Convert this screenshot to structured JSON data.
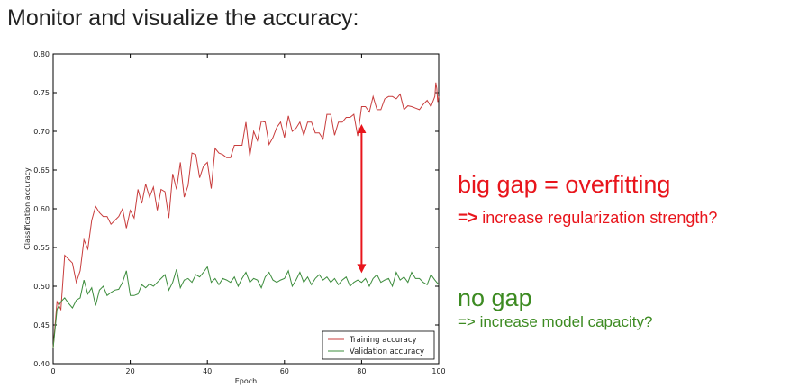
{
  "slide": {
    "title": "Monitor and visualize the accuracy:"
  },
  "annotations": {
    "gap_title": "big gap = overfitting",
    "gap_arrow": "=>",
    "gap_suggestion": "increase regularization strength?",
    "nogap_title": "no gap",
    "nogap_suggestion": "=> increase model capacity?",
    "gap_color": "#e8151c",
    "nogap_color": "#3d8b22",
    "gap_arrow_at_epoch": 80
  },
  "chart_data": {
    "type": "line",
    "title": "",
    "xlabel": "Epoch",
    "ylabel": "Classification accuracy",
    "xlim": [
      0,
      100
    ],
    "ylim": [
      0.4,
      0.8
    ],
    "xticks": [
      "0",
      "20",
      "40",
      "60",
      "80",
      "100"
    ],
    "yticks": [
      "0.40",
      "0.45",
      "0.50",
      "0.55",
      "0.60",
      "0.65",
      "0.70",
      "0.75",
      "0.80"
    ],
    "grid": false,
    "legend_position": "bottom-right",
    "x": [
      0,
      1,
      2,
      3,
      4,
      5,
      6,
      7,
      8,
      9,
      10,
      11,
      12,
      13,
      14,
      15,
      16,
      17,
      18,
      19,
      20,
      21,
      22,
      23,
      24,
      25,
      26,
      27,
      28,
      29,
      30,
      31,
      32,
      33,
      34,
      35,
      36,
      37,
      38,
      39,
      40,
      41,
      42,
      43,
      44,
      45,
      46,
      47,
      48,
      49,
      50,
      51,
      52,
      53,
      54,
      55,
      56,
      57,
      58,
      59,
      60,
      61,
      62,
      63,
      64,
      65,
      66,
      67,
      68,
      69,
      70,
      71,
      72,
      73,
      74,
      75,
      76,
      77,
      78,
      79,
      80,
      81,
      82,
      83,
      84,
      85,
      86,
      87,
      88,
      89,
      90,
      91,
      92,
      93,
      94,
      95,
      96,
      97,
      98,
      99,
      100
    ],
    "series": [
      {
        "name": "Training accuracy",
        "color": "#c83c3c",
        "values": [
          0.42,
          0.48,
          0.47,
          0.54,
          0.535,
          0.53,
          0.505,
          0.52,
          0.56,
          0.548,
          0.585,
          0.603,
          0.595,
          0.59,
          0.59,
          0.58,
          0.585,
          0.59,
          0.6,
          0.575,
          0.598,
          0.588,
          0.625,
          0.607,
          0.632,
          0.615,
          0.628,
          0.598,
          0.625,
          0.622,
          0.588,
          0.645,
          0.625,
          0.66,
          0.615,
          0.63,
          0.672,
          0.67,
          0.64,
          0.655,
          0.66,
          0.626,
          0.678,
          0.672,
          0.67,
          0.666,
          0.666,
          0.682,
          0.682,
          0.682,
          0.712,
          0.668,
          0.7,
          0.688,
          0.713,
          0.712,
          0.683,
          0.692,
          0.705,
          0.712,
          0.692,
          0.72,
          0.7,
          0.704,
          0.712,
          0.695,
          0.712,
          0.712,
          0.698,
          0.698,
          0.69,
          0.722,
          0.722,
          0.695,
          0.712,
          0.712,
          0.718,
          0.718,
          0.722,
          0.694,
          0.732,
          0.732,
          0.725,
          0.745,
          0.728,
          0.728,
          0.742,
          0.745,
          0.745,
          0.742,
          0.748,
          0.728,
          0.733,
          0.732,
          0.73,
          0.728,
          0.735,
          0.74,
          0.732,
          0.745,
          0.722
        ],
        "values_tail": [
          0.763,
          0.755,
          0.738,
          0.745
        ]
      },
      {
        "name": "Validation accuracy",
        "color": "#3c8c3c",
        "values": [
          0.42,
          0.47,
          0.48,
          0.485,
          0.478,
          0.472,
          0.482,
          0.485,
          0.508,
          0.49,
          0.498,
          0.475,
          0.495,
          0.5,
          0.488,
          0.492,
          0.495,
          0.496,
          0.505,
          0.52,
          0.488,
          0.488,
          0.49,
          0.502,
          0.498,
          0.503,
          0.5,
          0.505,
          0.51,
          0.515,
          0.495,
          0.505,
          0.522,
          0.498,
          0.508,
          0.51,
          0.505,
          0.515,
          0.512,
          0.518,
          0.525,
          0.505,
          0.51,
          0.502,
          0.51,
          0.508,
          0.505,
          0.512,
          0.5,
          0.51,
          0.518,
          0.505,
          0.51,
          0.508,
          0.498,
          0.512,
          0.518,
          0.508,
          0.505,
          0.508,
          0.51,
          0.52,
          0.5,
          0.508,
          0.518,
          0.505,
          0.512,
          0.502,
          0.51,
          0.515,
          0.508,
          0.512,
          0.505,
          0.51,
          0.502,
          0.508,
          0.512,
          0.5,
          0.505,
          0.508,
          0.505,
          0.51,
          0.5,
          0.51,
          0.515,
          0.505,
          0.508,
          0.51,
          0.5,
          0.518,
          0.508,
          0.512,
          0.505,
          0.518,
          0.51,
          0.51,
          0.505,
          0.502,
          0.515,
          0.508,
          0.502
        ]
      }
    ]
  }
}
